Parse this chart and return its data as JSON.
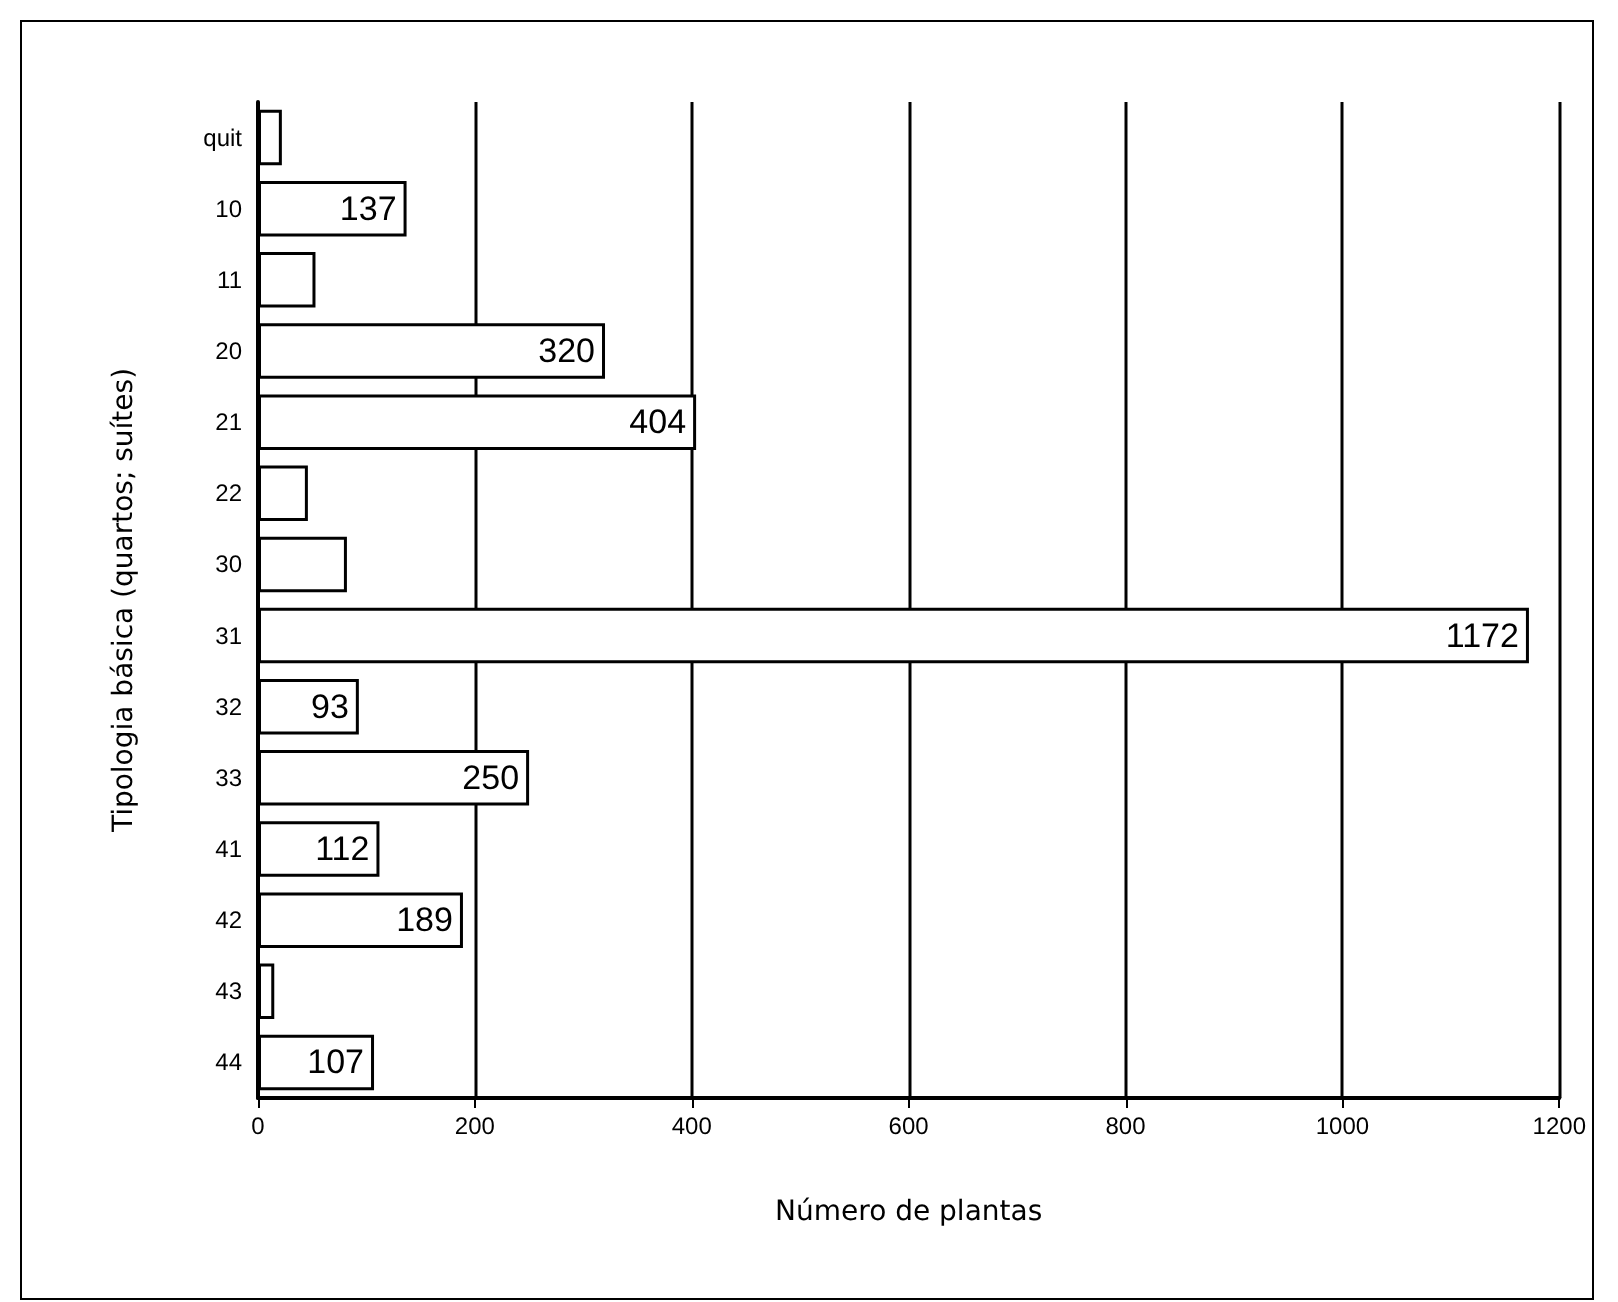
{
  "chart_data": {
    "type": "bar",
    "orientation": "horizontal",
    "xlabel": "Número de plantas",
    "ylabel": "Tipologia básica (quartos; suítes)",
    "categories": [
      "quit",
      "10",
      "11",
      "20",
      "21",
      "22",
      "30",
      "31",
      "32",
      "33",
      "41",
      "42",
      "43",
      "44"
    ],
    "values": [
      22,
      137,
      53,
      320,
      404,
      46,
      82,
      1172,
      93,
      250,
      112,
      189,
      15,
      107
    ],
    "value_labels": [
      null,
      "137",
      null,
      "320",
      "404",
      null,
      null,
      "1172",
      "93",
      "250",
      "112",
      "189",
      null,
      "107"
    ],
    "color": "#ffffff",
    "xlim": [
      0,
      1200
    ],
    "xticks": [
      0,
      200,
      400,
      600,
      800,
      1000,
      1200
    ],
    "grid": "x"
  }
}
